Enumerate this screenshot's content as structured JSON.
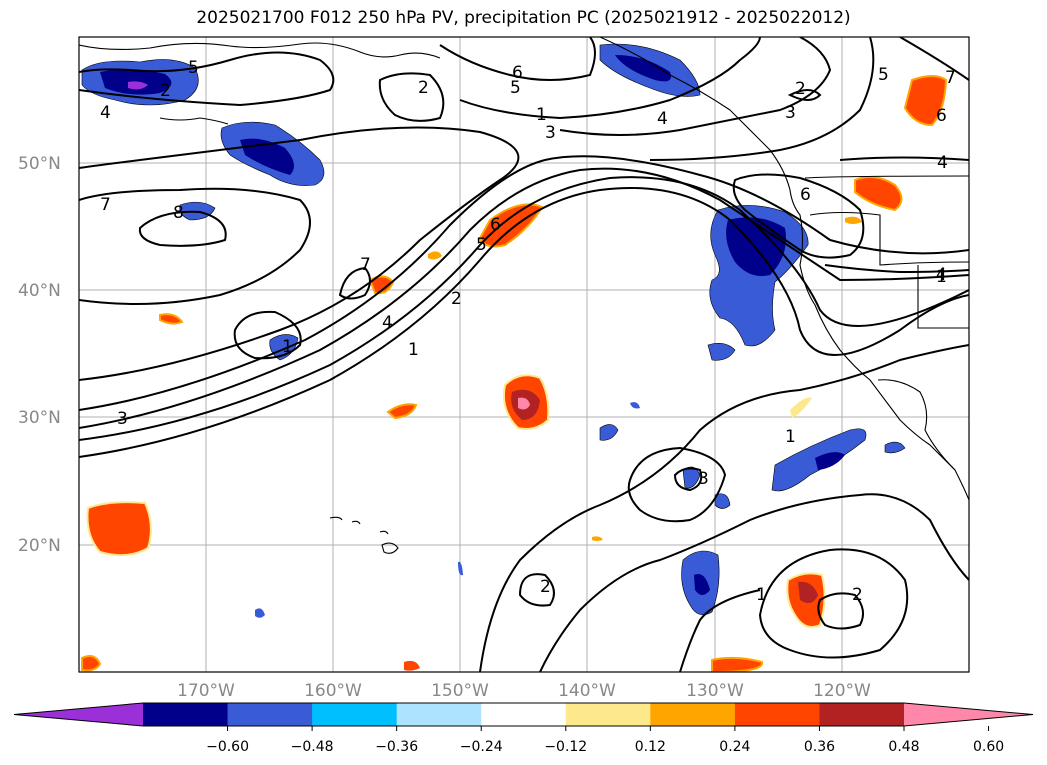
{
  "title": "2025021700 F012 250 hPa PV, precipitation PC (2025021912 - 2025022012)",
  "lat_labels": [
    "50°N",
    "40°N",
    "30°N",
    "20°N"
  ],
  "lon_labels": [
    "170°W",
    "160°W",
    "150°W",
    "140°W",
    "130°W",
    "120°W"
  ],
  "contour_labels": [
    "7",
    "6",
    "5",
    "4",
    "3",
    "2",
    "1",
    "8",
    "7",
    "6",
    "5",
    "4",
    "3",
    "2",
    "1",
    "4",
    "5",
    "6",
    "2",
    "7",
    "5",
    "3",
    "2",
    "1",
    "3",
    "2",
    "1",
    "4",
    "6",
    "4",
    "1",
    "1",
    "2"
  ],
  "colorbar": {
    "ticks": [
      "−0.60",
      "−0.48",
      "−0.36",
      "−0.24",
      "−0.12",
      "0.12",
      "0.24",
      "0.36",
      "0.48",
      "0.60"
    ],
    "colors": [
      "#9b30d9",
      "#00008b",
      "#3a5bd6",
      "#00bfff",
      "#aee3ff",
      "#ffffff",
      "#fde98c",
      "#ffa500",
      "#ff4500",
      "#b22222",
      "#ff88aa"
    ]
  }
}
